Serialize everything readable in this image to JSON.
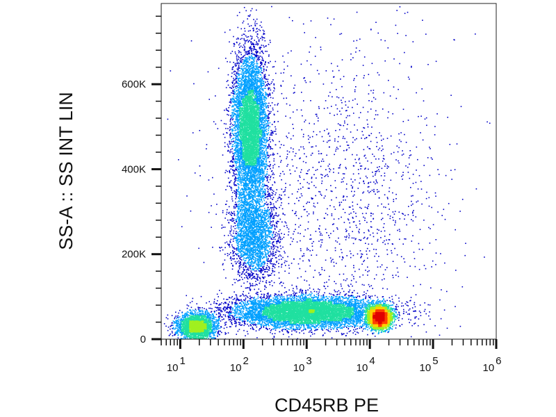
{
  "chart_data": {
    "type": "scatter",
    "subtype": "flow-cytometry-density-dot-plot",
    "xlabel": "CD45RB PE",
    "ylabel": "SS-A :: SS INT LIN",
    "x_scale": "log",
    "x_range": [
      5,
      1000000
    ],
    "y_scale": "linear",
    "y_range": [
      0,
      790000
    ],
    "x_ticks": [
      {
        "value": 10,
        "base": "10",
        "exp": "1"
      },
      {
        "value": 100,
        "base": "10",
        "exp": "2"
      },
      {
        "value": 1000,
        "base": "10",
        "exp": "3"
      },
      {
        "value": 10000,
        "base": "10",
        "exp": "4"
      },
      {
        "value": 100000,
        "base": "10",
        "exp": "5"
      },
      {
        "value": 1000000,
        "base": "10",
        "exp": "6"
      }
    ],
    "y_ticks": [
      {
        "value": 0,
        "label": "0"
      },
      {
        "value": 200000,
        "label": "200K"
      },
      {
        "value": 400000,
        "label": "400K"
      },
      {
        "value": 600000,
        "label": "600K"
      }
    ],
    "populations": [
      {
        "x_log10_center": 1.25,
        "x_log10_sd": 0.15,
        "y_center": 30000,
        "y_sd": 16000,
        "weight": 0.1
      },
      {
        "x_log10_center": 2.1,
        "x_log10_sd": 0.14,
        "y_center": 500000,
        "y_sd": 90000,
        "weight": 0.26
      },
      {
        "x_log10_center": 2.15,
        "x_log10_sd": 0.18,
        "y_center": 250000,
        "y_sd": 55000,
        "weight": 0.1
      },
      {
        "x_log10_center": 3.0,
        "x_log10_sd": 0.6,
        "y_center": 65000,
        "y_sd": 18000,
        "weight": 0.3
      },
      {
        "x_log10_center": 4.15,
        "x_log10_sd": 0.08,
        "y_center": 52000,
        "y_sd": 12000,
        "weight": 0.18
      },
      {
        "x_log10_center": 3.5,
        "x_log10_sd": 0.9,
        "y_center": 330000,
        "y_sd": 200000,
        "weight": 0.06
      }
    ],
    "color_scale": [
      "#0000c8",
      "#00a0ff",
      "#20e0a0",
      "#a0f020",
      "#ffd000",
      "#ff4000",
      "#e00000"
    ],
    "grid": false,
    "legend": "none"
  }
}
